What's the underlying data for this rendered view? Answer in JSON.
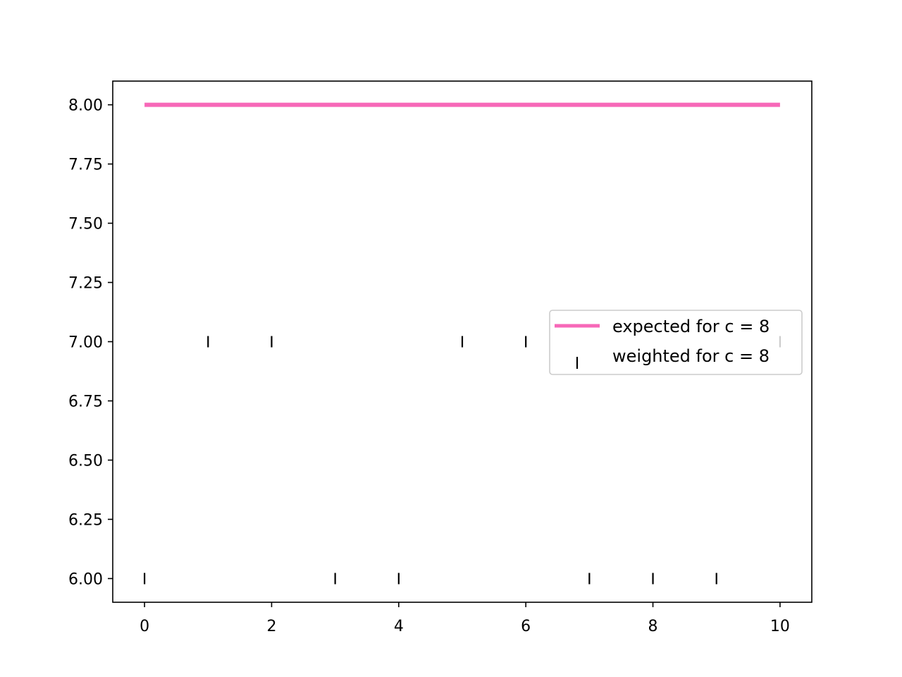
{
  "chart_data": {
    "type": "scatter",
    "title": "",
    "xlabel": "",
    "ylabel": "",
    "xlim": [
      -0.5,
      10.5
    ],
    "ylim": [
      5.9,
      8.1
    ],
    "xticks": [
      0,
      2,
      4,
      6,
      8,
      10
    ],
    "yticks": [
      6.0,
      6.25,
      6.5,
      6.75,
      7.0,
      7.25,
      7.5,
      7.75,
      8.0
    ],
    "xtick_labels": [
      "0",
      "2",
      "4",
      "6",
      "8",
      "10"
    ],
    "ytick_labels": [
      "6.00",
      "6.25",
      "6.50",
      "6.75",
      "7.00",
      "7.25",
      "7.50",
      "7.75",
      "8.00"
    ],
    "grid": false,
    "legend_placement": "center-right",
    "series": [
      {
        "name": "expected for c = 8",
        "kind": "line",
        "color": "#f768b8",
        "x": [
          0,
          10
        ],
        "y": [
          8,
          8
        ]
      },
      {
        "name": "weighted for c = 8",
        "kind": "scatter",
        "marker": "vertical-line",
        "color": "#000000",
        "x": [
          0,
          1,
          2,
          3,
          4,
          5,
          6,
          7,
          8,
          9,
          10
        ],
        "y": [
          6,
          7,
          7,
          6,
          6,
          7,
          7,
          6,
          6,
          6,
          7
        ]
      }
    ]
  }
}
